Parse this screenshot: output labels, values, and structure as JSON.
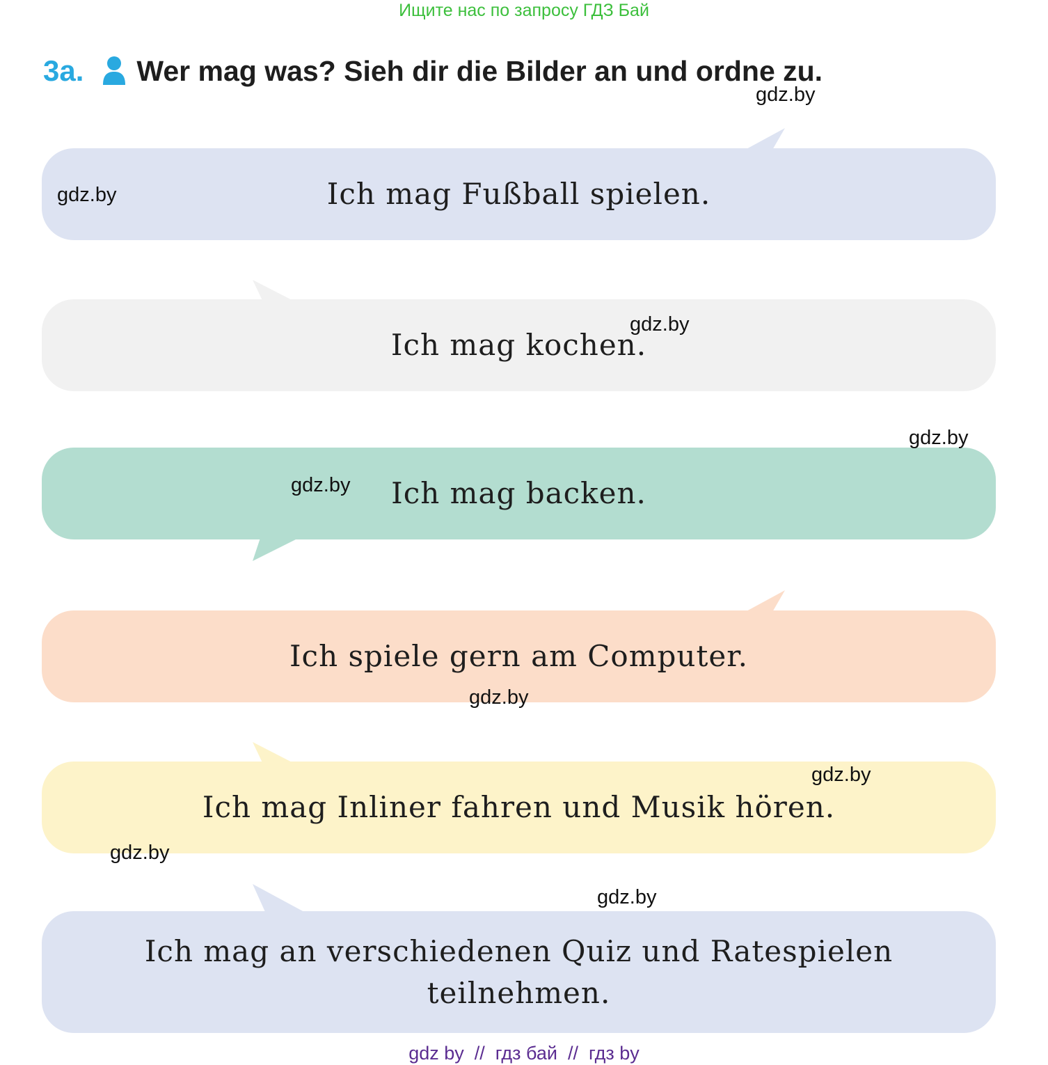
{
  "banner": "Ищите нас по запросу ГДЗ Бай",
  "task": {
    "number": "3a.",
    "icon": "person-icon",
    "text": "Wer mag was? Sieh dir die Bilder an und ordne zu."
  },
  "bubbles": [
    {
      "text": "Ich mag Fußball spielen.",
      "color": "#dde3f2"
    },
    {
      "text": "Ich mag kochen.",
      "color": "#f1f1f1"
    },
    {
      "text": "Ich mag backen.",
      "color": "#b3ddd0"
    },
    {
      "text": "Ich spiele gern am Computer.",
      "color": "#fcddc9"
    },
    {
      "text": "Ich mag Inliner fahren und Musik hören.",
      "color": "#fdf3c9"
    },
    {
      "text": "Ich mag an verschiedenen Quiz und Ratespielen teilnehmen.",
      "color": "#dde3f2"
    }
  ],
  "watermark": "gdz.by",
  "footer": "gdz by  //  гдз бай  //  гдз by"
}
